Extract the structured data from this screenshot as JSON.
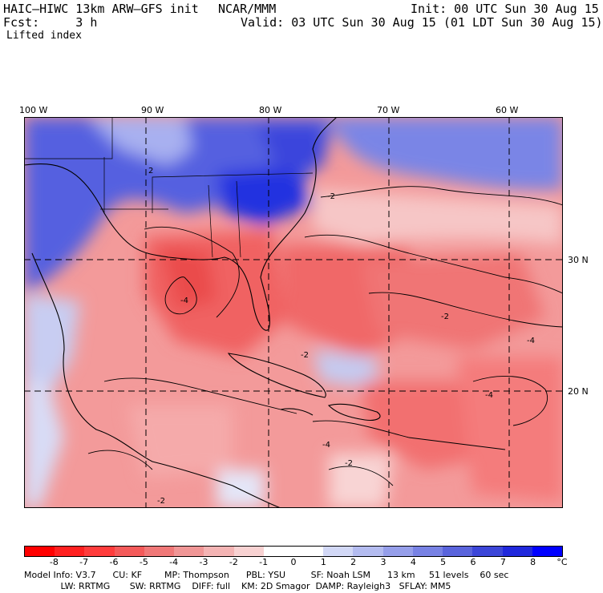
{
  "header": {
    "title": "HAIC–HIWC 13km ARW–GFS init",
    "org": "NCAR/MMM",
    "init": "Init: 00 UTC Sun 30 Aug 15",
    "fcst": "Fcst:     3 h",
    "valid": "Valid: 03 UTC Sun 30 Aug 15 (01 LDT Sun 30 Aug 15)",
    "field": "Lifted index"
  },
  "map": {
    "lon_labels": [
      "100 W",
      "90 W",
      "80 W",
      "70 W",
      "60 W"
    ],
    "lat_labels": [
      "30 N",
      "20 N"
    ],
    "contour_labels": [
      "2",
      "-2",
      "-4",
      "-2",
      "-2",
      "-4",
      "-4",
      "-2",
      "-4",
      "-2"
    ]
  },
  "colorbar": {
    "colors": [
      "#ff0000",
      "#ff2020",
      "#ff3c3c",
      "#f45a5a",
      "#f07878",
      "#f09696",
      "#f4b4b4",
      "#f8d2d2",
      "#ffffff",
      "#ffffff",
      "#d2d8f6",
      "#b4bcf0",
      "#969fea",
      "#7882e4",
      "#5a64dc",
      "#3c46d8",
      "#2028dc",
      "#0000ff"
    ],
    "tick_labels": [
      "-8",
      "-7",
      "-6",
      "-5",
      "-4",
      "-3",
      "-2",
      "-1",
      "0",
      "1",
      "2",
      "3",
      "4",
      "5",
      "6",
      "7",
      "8"
    ],
    "unit": "°C"
  },
  "model_info": {
    "line1": "Model Info: V3.7      CU: KF        MP: Thompson      PBL: YSU         SF: Noah LSM      13 km     51 levels    60 sec",
    "line2": "             LW: RRTMG       SW: RRTMG    DIFF: full    KM: 2D Smagor  DAMP: Rayleigh3   SFLAY: MM5"
  }
}
